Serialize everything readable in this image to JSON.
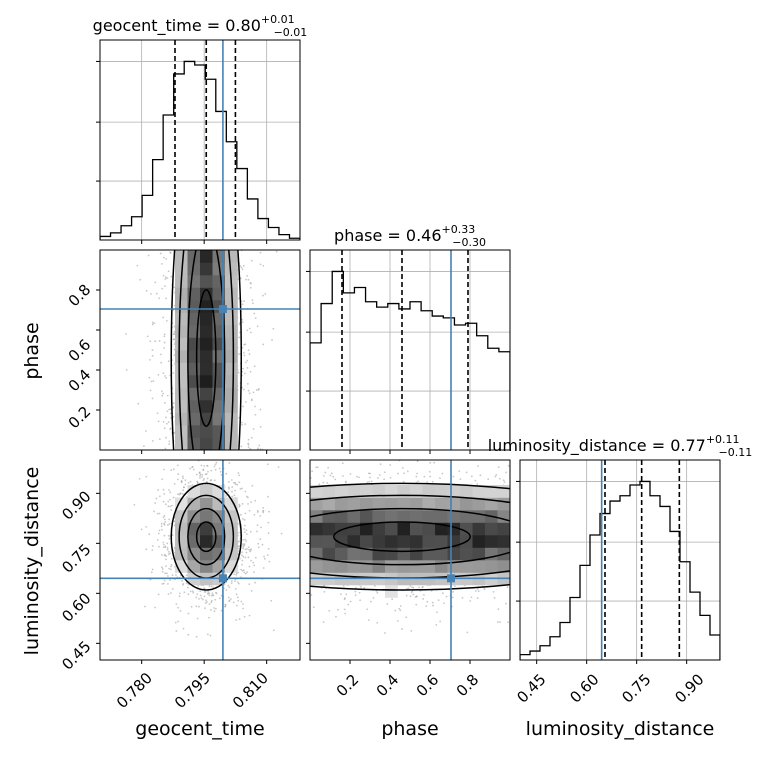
{
  "figure": {
    "type": "corner_plot",
    "parameters": [
      "geocent_time",
      "phase",
      "luminosity_distance"
    ],
    "truth_color": "#4682b4"
  },
  "chart_data": [
    {
      "id": "hist-geocent-time",
      "type": "histogram",
      "title": {
        "name": "geocent_time",
        "median": "0.80",
        "plus": "+0.01",
        "minus": "−0.01"
      },
      "xlim": [
        0.77,
        0.818
      ],
      "xticks": [
        0.78,
        0.795,
        0.81
      ],
      "ylim": [
        0,
        1.12
      ],
      "heights": [
        0.02,
        0.04,
        0.08,
        0.13,
        0.25,
        0.45,
        0.7,
        0.93,
        1.0,
        0.98,
        0.9,
        0.72,
        0.55,
        0.4,
        0.23,
        0.12,
        0.07,
        0.03,
        0.01
      ],
      "quantiles": [
        0.788,
        0.7955,
        0.8025
      ],
      "truth": 0.7995,
      "grid": true
    },
    {
      "id": "hist-phase",
      "type": "histogram",
      "title": {
        "name": "phase",
        "median": "0.46",
        "plus": "+0.33",
        "minus": "−0.30"
      },
      "xlim": [
        0.0,
        1.0
      ],
      "xticks": [
        0.2,
        0.4,
        0.6,
        0.8
      ],
      "ylim": [
        0,
        1.12
      ],
      "heights": [
        0.6,
        0.82,
        1.0,
        0.88,
        0.91,
        0.83,
        0.8,
        0.82,
        0.79,
        0.83,
        0.78,
        0.75,
        0.74,
        0.7,
        0.71,
        0.64,
        0.57,
        0.55
      ],
      "quantiles": [
        0.16,
        0.46,
        0.79
      ],
      "truth": 0.705,
      "grid": true
    },
    {
      "id": "hist-luminosity-distance",
      "type": "histogram",
      "title": {
        "name": "luminosity_distance",
        "median": "0.77",
        "plus": "+0.11",
        "minus": "−0.11"
      },
      "xlim": [
        0.4,
        1.0
      ],
      "xticks": [
        0.45,
        0.6,
        0.75,
        0.9
      ],
      "ylim": [
        0,
        1.12
      ],
      "heights": [
        0.03,
        0.05,
        0.08,
        0.13,
        0.21,
        0.35,
        0.53,
        0.7,
        0.82,
        0.89,
        0.92,
        0.98,
        1.0,
        0.92,
        0.86,
        0.72,
        0.55,
        0.38,
        0.25,
        0.14
      ],
      "quantiles": [
        0.655,
        0.765,
        0.878
      ],
      "truth": 0.645,
      "grid": true
    },
    {
      "id": "hist2d-geocent-phase",
      "type": "hist2d",
      "x_param": "geocent_time",
      "y_param": "phase",
      "xlim": [
        0.77,
        0.818
      ],
      "ylim": [
        0.0,
        1.0
      ],
      "yticks": [
        0.2,
        0.4,
        0.6,
        0.8
      ],
      "truth": [
        0.7995,
        0.705
      ],
      "x_mean": 0.7955,
      "x_sd": 0.0042,
      "y_mean": 0.46,
      "y_sd": 0.3,
      "grid": true
    },
    {
      "id": "hist2d-geocent-distance",
      "type": "hist2d",
      "x_param": "geocent_time",
      "y_param": "luminosity_distance",
      "xlim": [
        0.77,
        0.818
      ],
      "ylim": [
        0.4,
        1.0
      ],
      "yticks": [
        0.45,
        0.6,
        0.75,
        0.9
      ],
      "truth": [
        0.7995,
        0.645
      ],
      "x_mean": 0.7955,
      "x_sd": 0.0042,
      "y_mean": 0.77,
      "y_sd": 0.08,
      "grid": true
    },
    {
      "id": "hist2d-phase-distance",
      "type": "hist2d",
      "x_param": "phase",
      "y_param": "luminosity_distance",
      "xlim": [
        0.0,
        1.0
      ],
      "ylim": [
        0.4,
        1.0
      ],
      "truth": [
        0.705,
        0.645
      ],
      "x_mean": 0.46,
      "x_sd": 0.3,
      "y_mean": 0.77,
      "y_sd": 0.08,
      "grid": true
    }
  ],
  "axis_labels": {
    "phase_y": "phase",
    "distance_y": "luminosity_distance",
    "geocent_x": "geocent_time",
    "phase_x": "phase",
    "distance_x": "luminosity_distance"
  },
  "tick_labels": {
    "geocent": [
      "0.780",
      "0.795",
      "0.810"
    ],
    "phase": [
      "0.2",
      "0.4",
      "0.6",
      "0.8"
    ],
    "distance": [
      "0.45",
      "0.60",
      "0.75",
      "0.90"
    ]
  }
}
